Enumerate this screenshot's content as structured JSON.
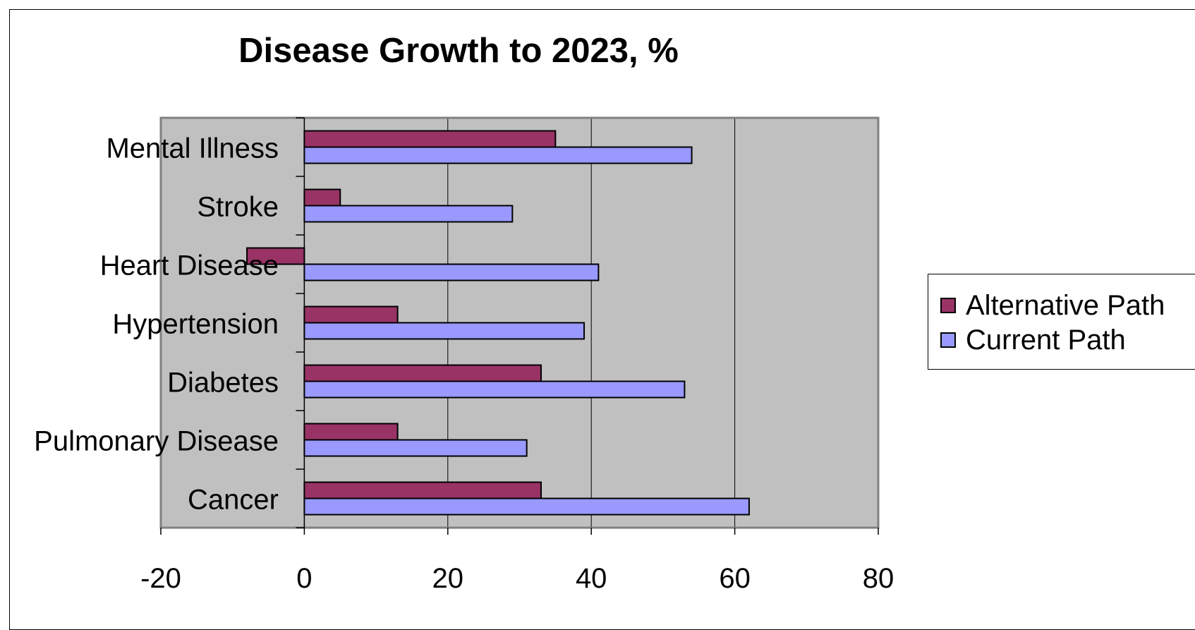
{
  "chart_data": {
    "type": "bar",
    "orientation": "horizontal",
    "title": "Disease Growth to 2023, %",
    "categories": [
      "Cancer",
      "Pulmonary Disease",
      "Diabetes",
      "Hypertension",
      "Heart Disease",
      "Stroke",
      "Mental Illness"
    ],
    "series": [
      {
        "name": "Alternative Path",
        "values": [
          33,
          13,
          33,
          13,
          -8,
          5,
          35
        ]
      },
      {
        "name": "Current Path",
        "values": [
          62,
          31,
          53,
          39,
          41,
          29,
          54
        ]
      }
    ],
    "xlim": [
      -20,
      80
    ],
    "xticks": [
      -20,
      0,
      20,
      40,
      60,
      80
    ],
    "grid": true,
    "legend": "right",
    "colors": {
      "Alternative Path": "#993366",
      "Current Path": "#9999ff",
      "plot_background": "#c0c0c0",
      "gridline": "#000000"
    }
  }
}
